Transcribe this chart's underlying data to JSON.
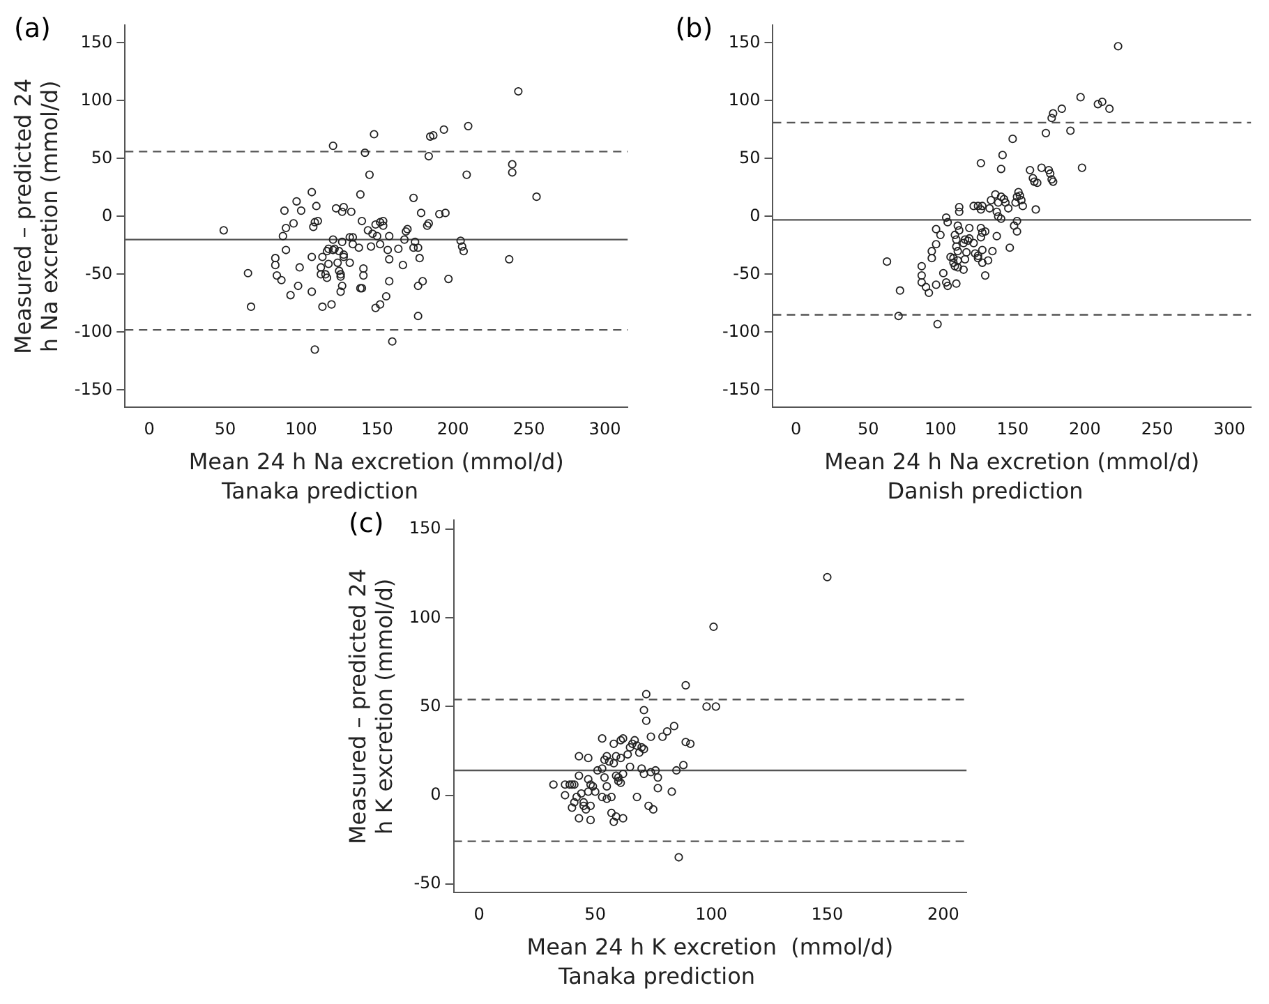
{
  "chart_data": [
    {
      "type": "scatter",
      "title": "(a)",
      "xlabel": "Mean 24 h Na excretion (mmol/d)",
      "subtitle": "Tanaka prediction",
      "ylabel": "Measured – predicted 24 h Na excretion (mmol/d)",
      "marker": "circle",
      "grid": false,
      "legend": false,
      "xlim": [
        -16,
        315
      ],
      "xticks": [
        0,
        50,
        100,
        150,
        200,
        250,
        300
      ],
      "ylim": [
        -165,
        165
      ],
      "yticks": [
        -150,
        -100,
        -50,
        0,
        50,
        100,
        150
      ],
      "ref_lines": [
        {
          "axis": "y",
          "value": -20,
          "color": "#555555",
          "line_style": "solid"
        },
        {
          "axis": "y",
          "value": 56,
          "color": "#555555",
          "line_style": "dashed"
        },
        {
          "axis": "y",
          "value": -98,
          "color": "#555555",
          "line_style": "dashed"
        }
      ],
      "series": [
        {
          "color": "#222222",
          "x": [
            49,
            65,
            67,
            243,
            210,
            194,
            185,
            187,
            184,
            148,
            121,
            142,
            145,
            209,
            239,
            239,
            255,
            107,
            139,
            174,
            97,
            110,
            89,
            100,
            123,
            128,
            127,
            133,
            179,
            191,
            195,
            95,
            90,
            88,
            109,
            111,
            108,
            140,
            149,
            152,
            154,
            154,
            144,
            147,
            150,
            158,
            169,
            170,
            183,
            184,
            121,
            127,
            132,
            134,
            134,
            138,
            146,
            152,
            157,
            164,
            168,
            175,
            174,
            177,
            178,
            205,
            206,
            207,
            237,
            90,
            83,
            83,
            84,
            87,
            99,
            107,
            114,
            117,
            118,
            121,
            122,
            125,
            128,
            128,
            118,
            113,
            113,
            116,
            117,
            125,
            126,
            126,
            124,
            132,
            141,
            141,
            158,
            158,
            167,
            98,
            93,
            107,
            127,
            126,
            139,
            140,
            114,
            120,
            149,
            152,
            156,
            177,
            180,
            197,
            177,
            109,
            160
          ],
          "values": [
            -12,
            -49,
            -78,
            108,
            78,
            75,
            69,
            70,
            52,
            71,
            61,
            55,
            36,
            36,
            45,
            38,
            17,
            21,
            19,
            16,
            13,
            9,
            5,
            5,
            7,
            8,
            4,
            4,
            3,
            2,
            3,
            -6,
            -10,
            -17,
            -5,
            -4,
            -9,
            -4,
            -7,
            -5,
            -4,
            -8,
            -12,
            -15,
            -17,
            -17,
            -13,
            -11,
            -8,
            -6,
            -20,
            -22,
            -18,
            -18,
            -24,
            -27,
            -26,
            -24,
            -29,
            -28,
            -20,
            -22,
            -27,
            -27,
            -36,
            -21,
            -26,
            -30,
            -37,
            -29,
            -36,
            -42,
            -51,
            -55,
            -44,
            -35,
            -35,
            -30,
            -28,
            -29,
            -28,
            -30,
            -33,
            -35,
            -41,
            -44,
            -50,
            -50,
            -53,
            -47,
            -50,
            -52,
            -40,
            -40,
            -45,
            -51,
            -37,
            -56,
            -42,
            -60,
            -68,
            -65,
            -60,
            -65,
            -62,
            -62,
            -78,
            -76,
            -79,
            -76,
            -69,
            -60,
            -56,
            -54,
            -86,
            -115,
            -108
          ]
        }
      ]
    },
    {
      "type": "scatter",
      "title": "(b)",
      "xlabel": "Mean 24 h Na excretion (mmol/d)",
      "subtitle": "Danish prediction",
      "marker": "circle",
      "grid": false,
      "legend": false,
      "xlim": [
        -16,
        315
      ],
      "xticks": [
        0,
        50,
        100,
        150,
        200,
        250,
        300
      ],
      "ylim": [
        -165,
        165
      ],
      "yticks": [
        -150,
        -100,
        -50,
        0,
        50,
        100,
        150
      ],
      "ref_lines": [
        {
          "axis": "y",
          "value": -3,
          "color": "#555555",
          "line_style": "solid"
        },
        {
          "axis": "y",
          "value": 81,
          "color": "#555555",
          "line_style": "dashed"
        },
        {
          "axis": "y",
          "value": -85,
          "color": "#555555",
          "line_style": "dashed"
        }
      ],
      "series": [
        {
          "color": "#222222",
          "x": [
            223,
            197,
            209,
            212,
            217,
            184,
            178,
            177,
            173,
            190,
            150,
            143,
            128,
            142,
            162,
            170,
            175,
            198,
            176,
            177,
            178,
            164,
            165,
            167,
            154,
            155,
            153,
            156,
            152,
            157,
            166,
            138,
            142,
            144,
            145,
            147,
            140,
            135,
            113,
            123,
            126,
            129,
            128,
            134,
            104,
            105,
            113,
            139,
            140,
            142,
            151,
            153,
            153,
            139,
            148,
            128,
            131,
            129,
            128,
            120,
            112,
            113,
            110,
            111,
            117,
            120,
            123,
            119,
            116,
            112,
            111,
            97,
            100,
            97,
            94,
            94,
            107,
            109,
            112,
            117,
            118,
            126,
            126,
            129,
            129,
            133,
            136,
            110,
            112,
            116,
            109,
            124,
            87,
            87,
            87,
            90,
            92,
            102,
            97,
            104,
            105,
            111,
            131,
            63,
            72,
            71,
            98
          ],
          "values": [
            147,
            103,
            97,
            99,
            93,
            93,
            89,
            85,
            72,
            74,
            67,
            53,
            46,
            41,
            40,
            42,
            40,
            42,
            37,
            32,
            30,
            33,
            30,
            29,
            21,
            18,
            17,
            14,
            12,
            9,
            6,
            19,
            17,
            15,
            12,
            7,
            12,
            14,
            8,
            9,
            9,
            9,
            6,
            7,
            -1,
            -5,
            4,
            4,
            0,
            -2,
            -8,
            -4,
            -13,
            -17,
            -27,
            -10,
            -13,
            -14,
            -18,
            -10,
            -8,
            -12,
            -16,
            -20,
            -20,
            -19,
            -23,
            -21,
            -23,
            -30,
            -26,
            -11,
            -16,
            -24,
            -30,
            -36,
            -35,
            -36,
            -38,
            -37,
            -31,
            -34,
            -36,
            -29,
            -40,
            -38,
            -30,
            -43,
            -44,
            -46,
            -40,
            -32,
            -43,
            -51,
            -57,
            -61,
            -66,
            -49,
            -59,
            -57,
            -60,
            -58,
            -51,
            -39,
            -64,
            -86,
            -93
          ]
        }
      ]
    },
    {
      "type": "scatter",
      "title": "(c)",
      "xlabel": "Mean 24 h K excretion  (mmol/d)",
      "subtitle": "Tanaka prediction",
      "ylabel": "Measured – predicted 24 h K excretion (mmol/d)",
      "marker": "circle",
      "grid": false,
      "legend": false,
      "xlim": [
        -11,
        210
      ],
      "xticks": [
        0,
        50,
        100,
        150,
        200
      ],
      "ylim": [
        -55,
        155
      ],
      "yticks": [
        -50,
        0,
        50,
        100,
        150
      ],
      "ref_lines": [
        {
          "axis": "y",
          "value": 14,
          "color": "#555555",
          "line_style": "solid"
        },
        {
          "axis": "y",
          "value": 54,
          "color": "#555555",
          "line_style": "dashed"
        },
        {
          "axis": "y",
          "value": -26,
          "color": "#555555",
          "line_style": "dashed"
        }
      ],
      "series": [
        {
          "color": "#222222",
          "x": [
            150,
            101,
            89,
            72,
            98,
            102,
            71,
            72,
            84,
            81,
            79,
            74,
            89,
            91,
            88,
            85,
            53,
            58,
            61,
            62,
            66,
            67,
            68,
            70,
            71,
            69,
            65,
            64,
            61,
            59,
            55,
            54,
            56,
            58,
            53,
            51,
            43,
            47,
            65,
            70,
            71,
            74,
            76,
            77,
            59,
            60,
            62,
            60,
            61,
            43,
            47,
            48,
            49,
            54,
            55,
            50,
            53,
            57,
            55,
            32,
            37,
            39,
            40,
            41,
            37,
            42,
            44,
            47,
            45,
            41,
            40,
            45,
            48,
            46,
            68,
            77,
            83,
            73,
            75,
            57,
            59,
            62,
            58,
            43,
            48,
            86
          ],
          "values": [
            123,
            95,
            62,
            57,
            50,
            50,
            48,
            42,
            39,
            36,
            33,
            33,
            30,
            29,
            17,
            14,
            32,
            29,
            31,
            32,
            29,
            31,
            28,
            27,
            26,
            24,
            27,
            23,
            21,
            22,
            22,
            20,
            19,
            18,
            15,
            14,
            22,
            21,
            16,
            15,
            12,
            13,
            14,
            10,
            11,
            10,
            12,
            8,
            7,
            11,
            9,
            6,
            5,
            10,
            5,
            2,
            -1,
            -1,
            -2,
            6,
            6,
            6,
            6,
            6,
            0,
            -1,
            1,
            2,
            -4,
            -4,
            -7,
            -6,
            -6,
            -8,
            -1,
            4,
            2,
            -6,
            -8,
            -10,
            -12,
            -13,
            -15,
            -13,
            -14,
            -35
          ]
        }
      ]
    }
  ]
}
